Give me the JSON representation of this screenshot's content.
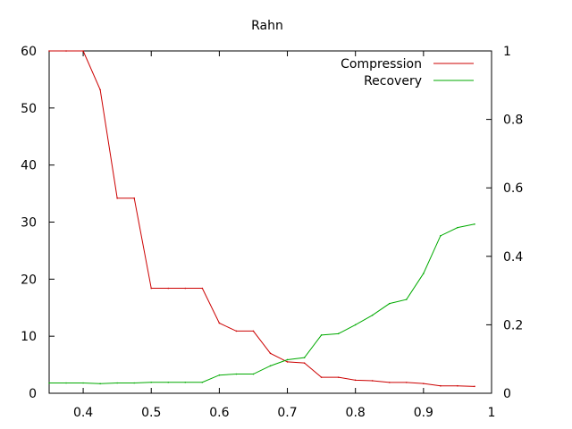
{
  "chart_data": {
    "type": "line",
    "title": "Rahn",
    "xlim": [
      0.35,
      1.0
    ],
    "ylim_left": [
      0,
      60
    ],
    "ylim_right": [
      0,
      1
    ],
    "x_ticks": [
      "0.4",
      "0.5",
      "0.6",
      "0.7",
      "0.8",
      "0.9",
      "1"
    ],
    "y_left_ticks": [
      "0",
      "10",
      "20",
      "30",
      "40",
      "50",
      "60"
    ],
    "y_right_ticks": [
      "0",
      "0.2",
      "0.4",
      "0.6",
      "0.8",
      "1"
    ],
    "x_tick_values": [
      0.4,
      0.5,
      0.6,
      0.7,
      0.8,
      0.9,
      1.0
    ],
    "y_left_tick_values": [
      0,
      10,
      20,
      30,
      40,
      50,
      60
    ],
    "y_right_tick_values": [
      0,
      0.2,
      0.4,
      0.6,
      0.8,
      1.0
    ],
    "legend_position": "top-right",
    "series": [
      {
        "name": "Compression",
        "axis": "left",
        "color": "#cc0000",
        "x": [
          0.35,
          0.375,
          0.4,
          0.425,
          0.45,
          0.475,
          0.5,
          0.525,
          0.55,
          0.575,
          0.6,
          0.625,
          0.65,
          0.675,
          0.7,
          0.725,
          0.75,
          0.775,
          0.8,
          0.825,
          0.85,
          0.875,
          0.9,
          0.925,
          0.95,
          0.975
        ],
        "y": [
          60,
          60,
          60,
          53.2,
          34.2,
          34.2,
          18.4,
          18.4,
          18.4,
          18.4,
          12.3,
          10.9,
          10.9,
          7.0,
          5.5,
          5.3,
          2.8,
          2.8,
          2.3,
          2.2,
          1.9,
          1.9,
          1.7,
          1.3,
          1.3,
          1.2
        ]
      },
      {
        "name": "Recovery",
        "axis": "right",
        "color": "#00aa00",
        "x": [
          0.35,
          0.375,
          0.4,
          0.425,
          0.45,
          0.475,
          0.5,
          0.525,
          0.55,
          0.575,
          0.6,
          0.625,
          0.65,
          0.675,
          0.7,
          0.725,
          0.75,
          0.775,
          0.8,
          0.825,
          0.85,
          0.875,
          0.9,
          0.925,
          0.95,
          0.975
        ],
        "y": [
          0.03,
          0.03,
          0.03,
          0.028,
          0.03,
          0.03,
          0.032,
          0.032,
          0.032,
          0.032,
          0.053,
          0.056,
          0.056,
          0.08,
          0.098,
          0.104,
          0.17,
          0.174,
          0.2,
          0.228,
          0.262,
          0.274,
          0.35,
          0.46,
          0.484,
          0.494
        ]
      }
    ]
  }
}
